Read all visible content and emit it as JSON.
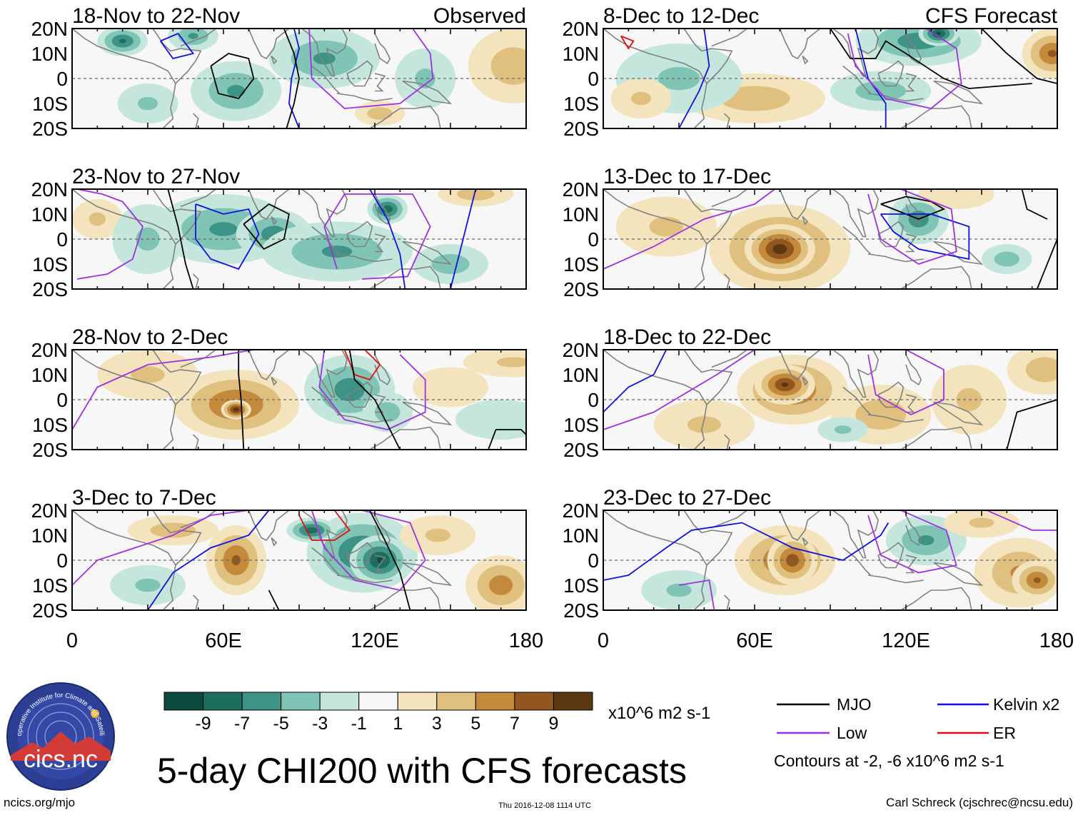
{
  "figure_title": "5-day CHI200 with CFS forecasts",
  "chart_data": {
    "type": "heatmap",
    "variable": "5-day CHI200 anomaly",
    "units": "x10^6 m2 s-1",
    "colors": {
      "MJO": "#000000",
      "Kelvin": "#1010e0",
      "Low": "#a030e0",
      "ER": "#e01010"
    },
    "xaxis": {
      "ticks": [
        "0",
        "60E",
        "120E",
        "180"
      ],
      "range": [
        0,
        180
      ]
    },
    "yaxis": {
      "ticks": [
        "20N",
        "10N",
        "0",
        "10S",
        "20S"
      ],
      "range": [
        -20,
        20
      ]
    },
    "columns": [
      {
        "label": "Observed",
        "panels": [
          {
            "title": "18-Nov to 22-Nov",
            "blobs": [
              [
                65,
                -5,
                18,
                12,
                -4
              ],
              [
                20,
                15,
                10,
                6,
                -6
              ],
              [
                48,
                17,
                10,
                6,
                -4
              ],
              [
                100,
                8,
                22,
                12,
                -4
              ],
              [
                140,
                0,
                12,
                12,
                -2
              ],
              [
                175,
                5,
                18,
                15,
                3
              ],
              [
                122,
                -14,
                10,
                5,
                3
              ],
              [
                30,
                -10,
                12,
                8,
                -2
              ]
            ]
          },
          {
            "title": "23-Nov to 27-Nov",
            "blobs": [
              [
                60,
                4,
                28,
                14,
                -4
              ],
              [
                80,
                2,
                15,
                10,
                -5
              ],
              [
                105,
                -5,
                30,
                12,
                -4
              ],
              [
                125,
                12,
                8,
                6,
                -7
              ],
              [
                150,
                -10,
                15,
                8,
                -3
              ],
              [
                160,
                18,
                15,
                5,
                3
              ],
              [
                10,
                8,
                10,
                8,
                2
              ],
              [
                30,
                0,
                14,
                14,
                -2
              ]
            ]
          },
          {
            "title": "28-Nov to 2-Dec",
            "blobs": [
              [
                65,
                -2,
                25,
                14,
                6
              ],
              [
                65,
                -4,
                6,
                4,
                9
              ],
              [
                110,
                4,
                18,
                14,
                -5
              ],
              [
                125,
                -5,
                10,
                8,
                -3
              ],
              [
                170,
                -8,
                18,
                8,
                -1
              ],
              [
                175,
                15,
                20,
                6,
                2
              ],
              [
                30,
                10,
                20,
                10,
                2
              ],
              [
                150,
                5,
                15,
                8,
                1
              ]
            ]
          },
          {
            "title": "3-Dec to 7-Dec",
            "blobs": [
              [
                115,
                3,
                22,
                16,
                -6
              ],
              [
                122,
                0,
                12,
                10,
                -8
              ],
              [
                95,
                12,
                10,
                5,
                -7
              ],
              [
                65,
                0,
                12,
                14,
                6
              ],
              [
                170,
                -10,
                14,
                12,
                5
              ],
              [
                30,
                -10,
                15,
                8,
                -2
              ],
              [
                145,
                10,
                15,
                8,
                2
              ],
              [
                40,
                12,
                18,
                6,
                3
              ]
            ]
          }
        ]
      },
      {
        "label": "CFS Forecast",
        "panels": [
          {
            "title": "8-Dec to 12-Dec",
            "blobs": [
              [
                125,
                15,
                25,
                10,
                -5
              ],
              [
                133,
                18,
                8,
                5,
                -8
              ],
              [
                60,
                -8,
                28,
                10,
                3
              ],
              [
                178,
                10,
                12,
                10,
                6
              ],
              [
                110,
                -5,
                20,
                8,
                -3
              ],
              [
                30,
                0,
                25,
                14,
                -2
              ],
              [
                15,
                -8,
                12,
                8,
                2
              ]
            ]
          },
          {
            "title": "13-Dec to 17-Dec",
            "blobs": [
              [
                70,
                -4,
                28,
                18,
                6
              ],
              [
                70,
                -4,
                14,
                10,
                9
              ],
              [
                125,
                8,
                12,
                10,
                -5
              ],
              [
                160,
                -8,
                10,
                6,
                -3
              ],
              [
                25,
                5,
                20,
                12,
                2
              ],
              [
                140,
                18,
                15,
                6,
                1
              ]
            ]
          },
          {
            "title": "18-Dec to 22-Dec",
            "blobs": [
              [
                75,
                4,
                22,
                14,
                6
              ],
              [
                72,
                6,
                12,
                8,
                8
              ],
              [
                110,
                -6,
                20,
                12,
                3
              ],
              [
                145,
                0,
                15,
                14,
                2
              ],
              [
                175,
                12,
                15,
                10,
                3
              ],
              [
                40,
                -10,
                20,
                10,
                2
              ],
              [
                95,
                -12,
                10,
                5,
                -2
              ]
            ]
          },
          {
            "title": "23-Dec to 27-Dec",
            "blobs": [
              [
                72,
                0,
                20,
                14,
                6
              ],
              [
                75,
                0,
                10,
                10,
                7
              ],
              [
                128,
                8,
                16,
                10,
                -4
              ],
              [
                165,
                -5,
                18,
                14,
                4
              ],
              [
                172,
                -8,
                10,
                8,
                6
              ],
              [
                30,
                -12,
                15,
                8,
                -2
              ],
              [
                150,
                15,
                15,
                6,
                2
              ]
            ]
          }
        ]
      }
    ],
    "colorbar": {
      "colors": [
        "#0c4a3e",
        "#1d6e5f",
        "#3d9486",
        "#7fc4b5",
        "#c4e6dd",
        "#f7f7f7",
        "#f3e4bd",
        "#dfc07f",
        "#c38a3c",
        "#91571f",
        "#5c3810"
      ],
      "labels": [
        "-9",
        "-7",
        "-5",
        "-3",
        "-1",
        "1",
        "3",
        "5",
        "7",
        "9"
      ]
    },
    "legend": {
      "items": [
        {
          "label": "MJO",
          "color": "#000000"
        },
        {
          "label": "Kelvin x2",
          "color": "#1010e0"
        },
        {
          "label": "Low",
          "color": "#a030e0"
        },
        {
          "label": "ER",
          "color": "#e01010"
        }
      ],
      "contours_note": "Contours at -2, -6 x10^6 m2 s-1"
    }
  },
  "logo_text": "cics.nc",
  "logo_arc_text": "Cooperative Institute for Climate and Satellites",
  "footer": {
    "left": "ncics.org/mjo",
    "center": "Thu 2016-12-08 1114 UTC",
    "right": "Carl Schreck (cjschrec@ncsu.edu)"
  }
}
